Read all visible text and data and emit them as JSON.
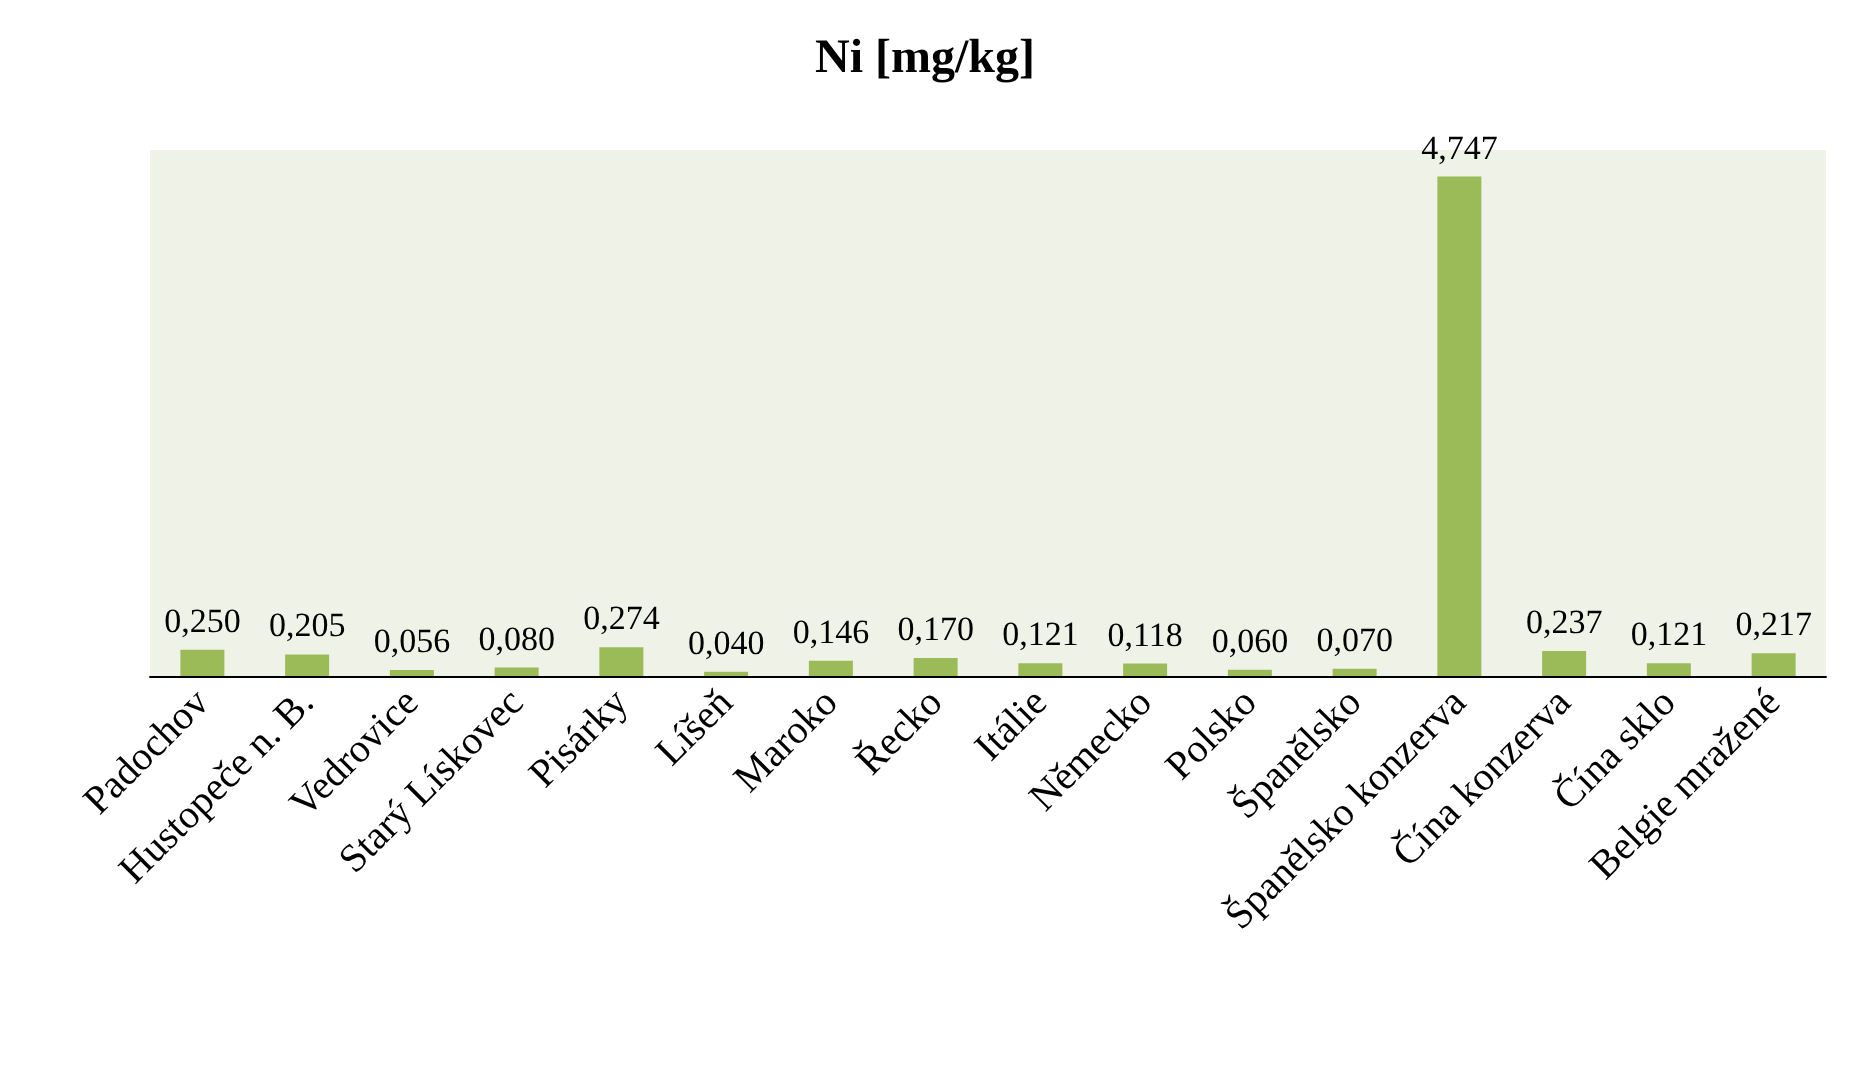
{
  "chart_data": {
    "type": "bar",
    "title": "Ni [mg/kg]",
    "categories": [
      "Padochov",
      "Hustopeče n. B.",
      "Vedrovice",
      "Starý Lískovec",
      "Pisárky",
      "Líšeň",
      "Maroko",
      "Řecko",
      "Itálie",
      "Německo",
      "Polsko",
      "Španělsko",
      "Španělsko konzerva",
      "Čína konzerva",
      "Čína sklo",
      "Belgie mražené"
    ],
    "values": [
      0.25,
      0.205,
      0.056,
      0.08,
      0.274,
      0.04,
      0.146,
      0.17,
      0.121,
      0.118,
      0.06,
      0.07,
      4.747,
      0.237,
      0.121,
      0.217
    ],
    "value_labels": [
      "0,250",
      "0,205",
      "0,056",
      "0,080",
      "0,274",
      "0,040",
      "0,146",
      "0,170",
      "0,121",
      "0,118",
      "0,060",
      "0,070",
      "4,747",
      "0,237",
      "0,121",
      "0,217"
    ],
    "color": "#9bbb59"
  }
}
